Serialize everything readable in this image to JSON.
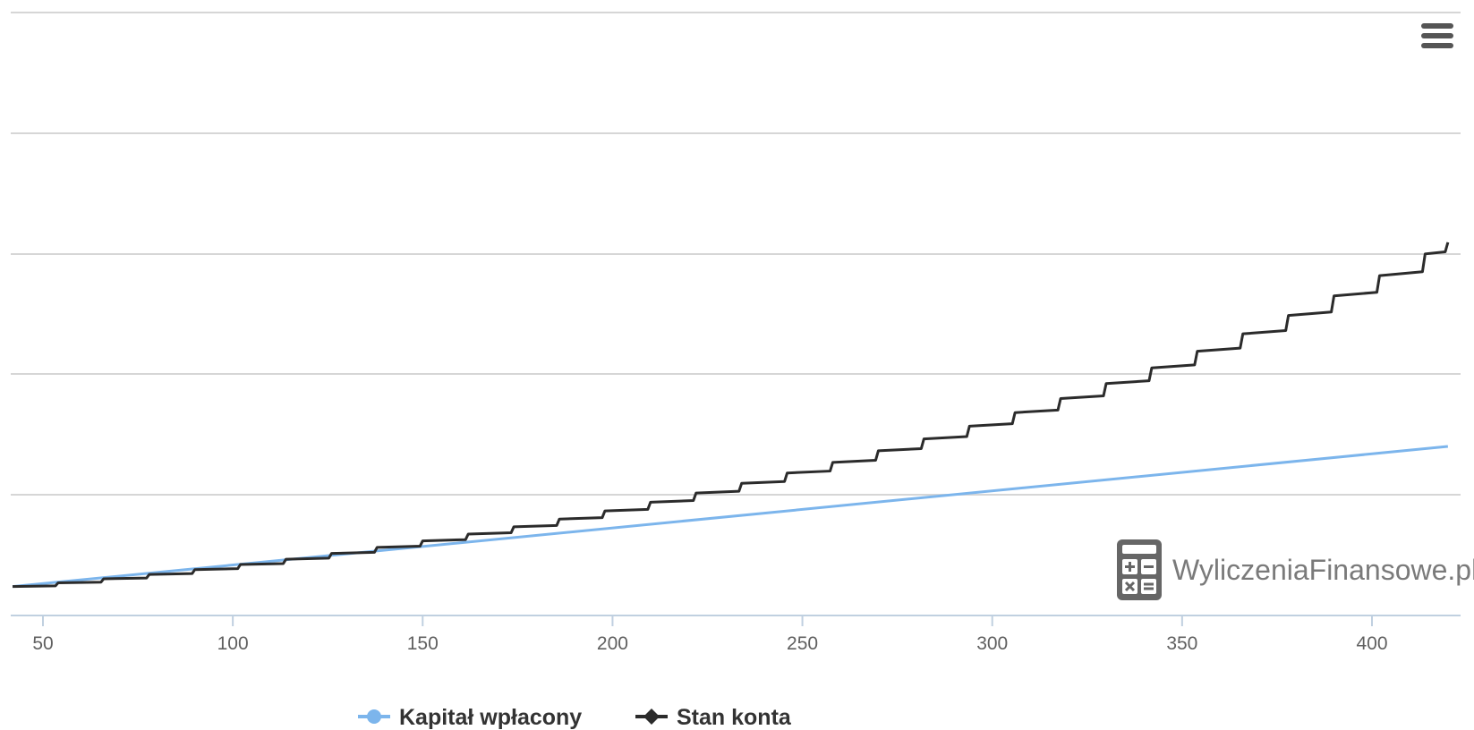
{
  "chart_data": {
    "type": "line",
    "title": "",
    "xlabel": "",
    "ylabel": "",
    "x_ticks": [
      50,
      100,
      150,
      200,
      250,
      300,
      350,
      400
    ],
    "xlim": [
      42,
      423
    ],
    "y_gridlines": 6,
    "grid": true,
    "legend_position": "bottom-center",
    "colors": {
      "kapital": "#7cb5ec",
      "stan": "#2b2b2b"
    },
    "series": [
      {
        "name": "Kapitał wpłacony",
        "marker": "circle",
        "x": [
          42,
          420
        ],
        "y": [
          12,
          70
        ]
      },
      {
        "name": "Stan konta",
        "marker": "diamond",
        "x": [
          42,
          54,
          66,
          78,
          90,
          102,
          114,
          126,
          138,
          150,
          162,
          174,
          186,
          198,
          210,
          222,
          234,
          246,
          258,
          270,
          282,
          294,
          306,
          318,
          330,
          342,
          354,
          366,
          378,
          390,
          402,
          414,
          420
        ],
        "y": [
          12,
          13.5,
          15.2,
          17.0,
          19.0,
          21.1,
          23.3,
          25.7,
          28.2,
          30.9,
          33.7,
          36.7,
          39.9,
          43.3,
          46.9,
          50.7,
          54.7,
          59.0,
          63.4,
          68.2,
          73.1,
          78.4,
          84.0,
          89.8,
          96.0,
          102.5,
          109.4,
          116.6,
          124.2,
          132.3,
          140.7,
          149.7,
          154.5
        ]
      }
    ],
    "watermark": "WyliczeniaFinansowe.pl",
    "menu_icon": "hamburger-menu-icon"
  }
}
